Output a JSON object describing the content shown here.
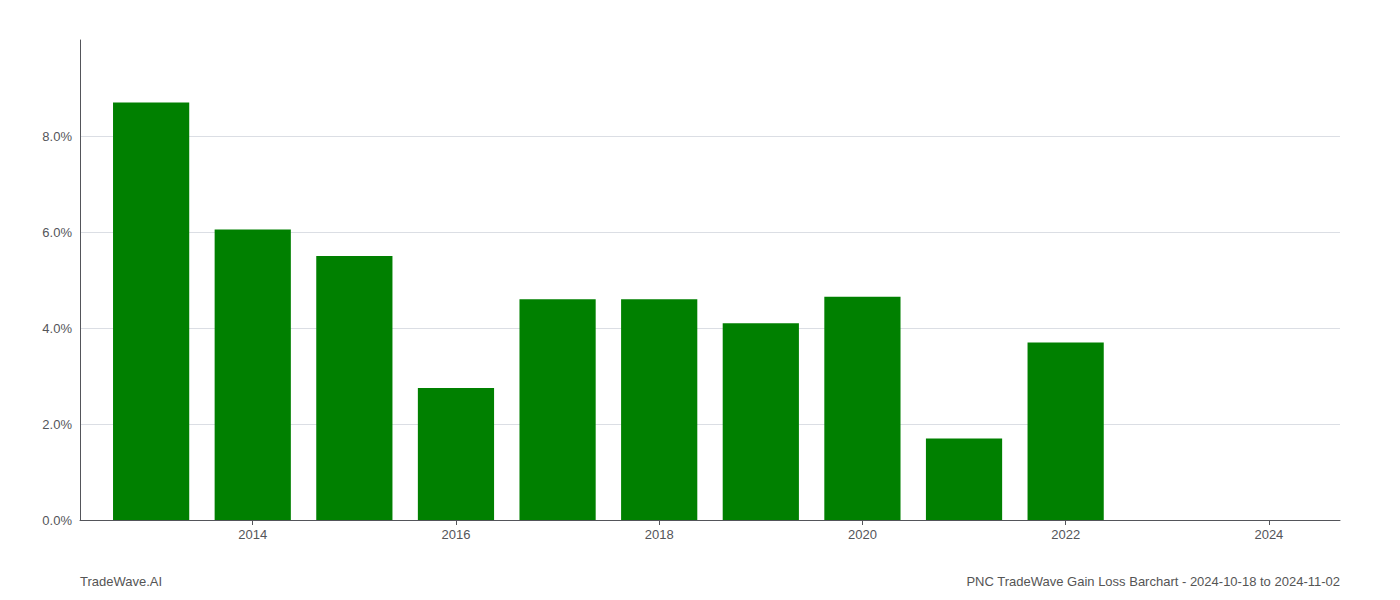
{
  "chart_data": {
    "type": "bar",
    "x": [
      2013,
      2014,
      2015,
      2016,
      2017,
      2018,
      2019,
      2020,
      2021,
      2022
    ],
    "values": [
      0.087,
      0.0605,
      0.055,
      0.0275,
      0.046,
      0.046,
      0.041,
      0.0465,
      0.017,
      0.037
    ],
    "color": "#008000",
    "xlim": [
      2012.3,
      2024.7
    ],
    "xticks": [
      2014,
      2016,
      2018,
      2020,
      2022,
      2024
    ],
    "ylim": [
      0,
      0.1
    ],
    "yticks": [
      {
        "value": 0.0,
        "label": "0.0%"
      },
      {
        "value": 0.02,
        "label": "2.0%"
      },
      {
        "value": 0.04,
        "label": "4.0%"
      },
      {
        "value": 0.06,
        "label": "6.0%"
      },
      {
        "value": 0.08,
        "label": "8.0%"
      }
    ],
    "grid": true,
    "annotations": [
      "TradeWave.AI",
      "PNC TradeWave Gain Loss Barchart - 2024-10-18 to 2024-11-02"
    ]
  }
}
